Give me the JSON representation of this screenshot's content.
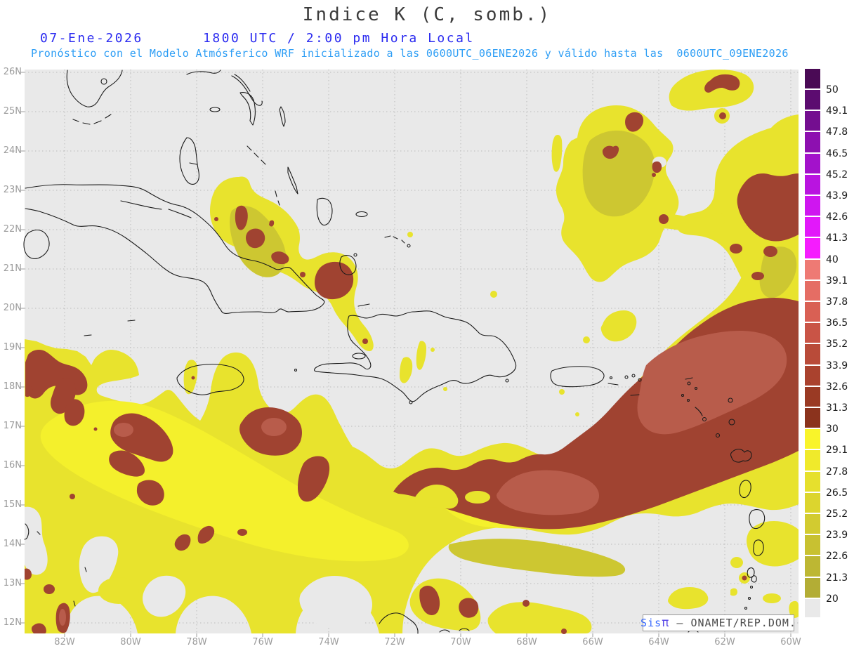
{
  "header": {
    "title": "Indice K (C, somb.)",
    "date": "07-Ene-2026",
    "time_line": "1800 UTC / 2:00 pm Hora Local",
    "subtitle": "Pronóstico con el Modelo Atmósferico WRF inicializado a las 0600UTC_06ENE2026 y válido hasta las  0600UTC_09ENE2026"
  },
  "axes": {
    "lat_labels": [
      "26N",
      "25N",
      "24N",
      "23N",
      "22N",
      "21N",
      "20N",
      "19N",
      "18N",
      "17N",
      "16N",
      "15N",
      "14N",
      "13N",
      "12N"
    ],
    "lon_labels": [
      "82W",
      "80W",
      "78W",
      "76W",
      "74W",
      "72W",
      "70W",
      "68W",
      "66W",
      "64W",
      "62W",
      "60W"
    ]
  },
  "colorbar": {
    "tick_labels": [
      "50",
      "49.1",
      "47.8",
      "46.5",
      "45.2",
      "43.9",
      "42.6",
      "41.3",
      "40",
      "39.1",
      "37.8",
      "36.5",
      "35.2",
      "33.9",
      "32.6",
      "31.3",
      "30",
      "29.1",
      "27.8",
      "26.5",
      "25.2",
      "23.9",
      "22.6",
      "21.3",
      "20"
    ],
    "segment_colors": [
      "#4a0a55",
      "#5c0c70",
      "#740e90",
      "#8d10b0",
      "#a312cb",
      "#b914e0",
      "#cf16f0",
      "#e218fa",
      "#f51cfe",
      "#ee7a74",
      "#e56d64",
      "#d96054",
      "#c95446",
      "#b94b39",
      "#aa422e",
      "#9a3a24",
      "#8b331d",
      "#f9f42a",
      "#f0ea2b",
      "#e6e02d",
      "#dcd52e",
      "#d2cb30",
      "#c8c131",
      "#bdb733",
      "#b3ad35",
      "#e9e9e9"
    ]
  },
  "colors": {
    "map_background": "#e9e9e9",
    "grid": "#bcbcbc",
    "contour_yellow": "#e8e32d",
    "contour_yellow_bright": "#f4f02c",
    "contour_yellow_olive": "#cdc731",
    "contour_red": "#a04331",
    "contour_red_light": "#b85c4b",
    "coastline": "#1a1a1a",
    "title_text": "#3c3c3c",
    "date_text": "#2b2bf0",
    "subtitle_text": "#2e9ef5",
    "axis_text": "#9c9c9c",
    "watermark_sis": "#3a6bff",
    "watermark_pi": "#5a49e8",
    "watermark_text": "#4a4a4a"
  },
  "watermark": {
    "sis": "Sis",
    "pi": "π",
    "rest": " – ONAMET/REP.DOM."
  }
}
